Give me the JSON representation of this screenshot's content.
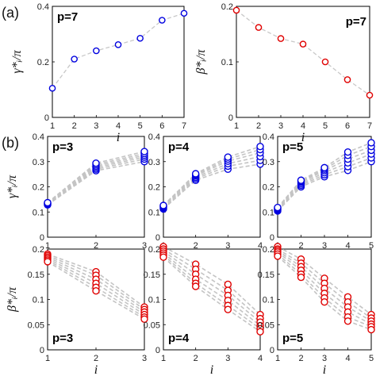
{
  "panel_labels": {
    "a": "(a)",
    "b": "(b)"
  },
  "chart_data": [
    {
      "type": "line",
      "label": "p=7",
      "ylabel": "γ*ᵢ/π",
      "xlabel": "i",
      "x": [
        1,
        2,
        3,
        4,
        5,
        6,
        7
      ],
      "xticks": [
        "1",
        "2",
        "3",
        "4",
        "5",
        "6",
        "7"
      ],
      "ylim": [
        0,
        0.4
      ],
      "yticks": [
        "0",
        "0.2",
        "0.4"
      ],
      "series": [
        {
          "values": [
            0.105,
            0.21,
            0.24,
            0.262,
            0.285,
            0.35,
            0.375
          ]
        }
      ],
      "color": "#0000e0",
      "grid": false,
      "label_pos": "top-left"
    },
    {
      "type": "line",
      "label": "p=7",
      "ylabel": "β*ᵢ/π",
      "xlabel": "i",
      "x": [
        1,
        2,
        3,
        4,
        5,
        6,
        7
      ],
      "xticks": [
        "1",
        "2",
        "3",
        "4",
        "5",
        "6",
        "7"
      ],
      "ylim": [
        0,
        0.2
      ],
      "yticks": [
        "0",
        "0.1",
        "0.2"
      ],
      "series": [
        {
          "values": [
            0.193,
            0.162,
            0.142,
            0.132,
            0.1,
            0.068,
            0.04
          ]
        }
      ],
      "color": "#e00000",
      "grid": false,
      "label_pos": "top-right"
    },
    {
      "type": "line",
      "label": "p=3",
      "ylabel": "γ*ᵢ/π",
      "x": [
        1,
        2,
        3
      ],
      "xticks": [
        "1",
        "2",
        "3"
      ],
      "ylim": [
        0,
        0.4
      ],
      "yticks": [
        "0",
        "0.1",
        "0.2",
        "0.3",
        "0.4"
      ],
      "series": [
        {
          "values": [
            0.128,
            0.264,
            0.3
          ]
        },
        {
          "values": [
            0.13,
            0.27,
            0.31
          ]
        },
        {
          "values": [
            0.132,
            0.276,
            0.318
          ]
        },
        {
          "values": [
            0.134,
            0.282,
            0.325
          ]
        },
        {
          "values": [
            0.135,
            0.288,
            0.332
          ]
        },
        {
          "values": [
            0.137,
            0.294,
            0.34
          ]
        }
      ],
      "color": "#0000e0",
      "label_pos": "top-left"
    },
    {
      "type": "line",
      "label": "p=4",
      "x": [
        1,
        2,
        3,
        4
      ],
      "xticks": [
        "1",
        "2",
        "3",
        "4"
      ],
      "ylim": [
        0,
        0.4
      ],
      "yticks": [
        "0",
        "0.1",
        "0.2",
        "0.3",
        "0.4"
      ],
      "series": [
        {
          "values": [
            0.112,
            0.226,
            0.27,
            0.29
          ]
        },
        {
          "values": [
            0.115,
            0.232,
            0.282,
            0.305
          ]
        },
        {
          "values": [
            0.118,
            0.238,
            0.292,
            0.32
          ]
        },
        {
          "values": [
            0.121,
            0.244,
            0.302,
            0.335
          ]
        },
        {
          "values": [
            0.124,
            0.248,
            0.31,
            0.348
          ]
        },
        {
          "values": [
            0.126,
            0.252,
            0.318,
            0.36
          ]
        }
      ],
      "color": "#0000e0",
      "label_pos": "top-left"
    },
    {
      "type": "line",
      "label": "p=5",
      "x": [
        1,
        2,
        3,
        4,
        5
      ],
      "xticks": [
        "1",
        "2",
        "3",
        "4",
        "5"
      ],
      "ylim": [
        0,
        0.4
      ],
      "yticks": [
        "0",
        "0.1",
        "0.2",
        "0.3",
        "0.4"
      ],
      "series": [
        {
          "values": [
            0.104,
            0.2,
            0.24,
            0.265,
            0.3
          ]
        },
        {
          "values": [
            0.107,
            0.206,
            0.248,
            0.28,
            0.315
          ]
        },
        {
          "values": [
            0.11,
            0.212,
            0.256,
            0.295,
            0.33
          ]
        },
        {
          "values": [
            0.113,
            0.218,
            0.264,
            0.31,
            0.345
          ]
        },
        {
          "values": [
            0.116,
            0.222,
            0.27,
            0.325,
            0.36
          ]
        },
        {
          "values": [
            0.118,
            0.226,
            0.276,
            0.338,
            0.375
          ]
        }
      ],
      "color": "#0000e0",
      "label_pos": "top-left"
    },
    {
      "type": "line",
      "label": "p=3",
      "ylabel": "β*ᵢ/π",
      "xlabel": "i",
      "x": [
        1,
        2,
        3
      ],
      "xticks": [
        "1",
        "2",
        "3"
      ],
      "ylim": [
        0,
        0.2
      ],
      "yticks": [
        "0",
        "0.05",
        "0.1",
        "0.15",
        "0.2"
      ],
      "series": [
        {
          "values": [
            0.19,
            0.155,
            0.085
          ]
        },
        {
          "values": [
            0.187,
            0.148,
            0.08
          ]
        },
        {
          "values": [
            0.184,
            0.14,
            0.075
          ]
        },
        {
          "values": [
            0.181,
            0.132,
            0.07
          ]
        },
        {
          "values": [
            0.178,
            0.124,
            0.065
          ]
        },
        {
          "values": [
            0.175,
            0.117,
            0.061
          ]
        }
      ],
      "color": "#e00000",
      "label_pos": "bottom-left"
    },
    {
      "type": "line",
      "label": "p=4",
      "xlabel": "i",
      "x": [
        1,
        2,
        3,
        4
      ],
      "xticks": [
        "1",
        "2",
        "3",
        "4"
      ],
      "ylim": [
        0,
        0.2
      ],
      "yticks": [
        "0",
        "0.05",
        "0.1",
        "0.15",
        "0.2"
      ],
      "series": [
        {
          "values": [
            0.205,
            0.17,
            0.13,
            0.07
          ]
        },
        {
          "values": [
            0.2,
            0.16,
            0.118,
            0.062
          ]
        },
        {
          "values": [
            0.196,
            0.15,
            0.108,
            0.055
          ]
        },
        {
          "values": [
            0.192,
            0.14,
            0.098,
            0.048
          ]
        },
        {
          "values": [
            0.188,
            0.132,
            0.088,
            0.042
          ]
        },
        {
          "values": [
            0.184,
            0.126,
            0.08,
            0.036
          ]
        }
      ],
      "color": "#e00000",
      "label_pos": "bottom-left"
    },
    {
      "type": "line",
      "label": "p=5",
      "xlabel": "i",
      "x": [
        1,
        2,
        3,
        4,
        5
      ],
      "xticks": [
        "1",
        "2",
        "3",
        "4",
        "5"
      ],
      "ylim": [
        0,
        0.2
      ],
      "yticks": [
        "0",
        "0.05",
        "0.1",
        "0.15",
        "0.2"
      ],
      "series": [
        {
          "values": [
            0.205,
            0.18,
            0.142,
            0.105,
            0.07
          ]
        },
        {
          "values": [
            0.2,
            0.172,
            0.132,
            0.095,
            0.063
          ]
        },
        {
          "values": [
            0.197,
            0.165,
            0.122,
            0.085,
            0.057
          ]
        },
        {
          "values": [
            0.194,
            0.158,
            0.112,
            0.075,
            0.051
          ]
        },
        {
          "values": [
            0.19,
            0.15,
            0.103,
            0.065,
            0.046
          ]
        },
        {
          "values": [
            0.186,
            0.144,
            0.095,
            0.057,
            0.04
          ]
        }
      ],
      "color": "#e00000",
      "label_pos": "bottom-left"
    }
  ]
}
